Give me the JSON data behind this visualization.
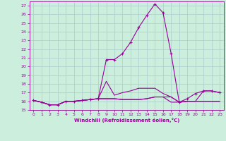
{
  "xlabel": "Windchill (Refroidissement éolien,°C)",
  "bg_color": "#cceedd",
  "line_color": "#990099",
  "grid_color": "#aacccc",
  "xlim": [
    -0.5,
    23.5
  ],
  "ylim": [
    15,
    27.5
  ],
  "yticks": [
    15,
    16,
    17,
    18,
    19,
    20,
    21,
    22,
    23,
    24,
    25,
    26,
    27
  ],
  "xticks": [
    0,
    1,
    2,
    3,
    4,
    5,
    6,
    7,
    8,
    9,
    10,
    11,
    12,
    13,
    14,
    15,
    16,
    17,
    18,
    19,
    20,
    21,
    22,
    23
  ],
  "series1_x": [
    0,
    1,
    2,
    3,
    4,
    5,
    6,
    7,
    8,
    9,
    10,
    11,
    12,
    13,
    14,
    15,
    16,
    17,
    18,
    19,
    20,
    21,
    22,
    23
  ],
  "series1_y": [
    16.1,
    15.9,
    15.6,
    15.6,
    16.0,
    16.0,
    16.1,
    16.2,
    16.3,
    20.8,
    20.8,
    21.5,
    22.8,
    24.5,
    25.9,
    27.2,
    26.2,
    21.5,
    15.9,
    16.3,
    16.9,
    17.2,
    17.2,
    17.0
  ],
  "series2_x": [
    0,
    1,
    2,
    3,
    4,
    5,
    6,
    7,
    8,
    9,
    10,
    11,
    12,
    13,
    14,
    15,
    16,
    17,
    18,
    19,
    20,
    21,
    22,
    23
  ],
  "series2_y": [
    16.1,
    15.9,
    15.6,
    15.6,
    16.0,
    16.0,
    16.1,
    16.2,
    16.3,
    18.3,
    16.7,
    17.0,
    17.2,
    17.5,
    17.5,
    17.5,
    16.9,
    16.5,
    15.9,
    16.0,
    16.0,
    16.0,
    16.0,
    16.0
  ],
  "series3_x": [
    0,
    1,
    2,
    3,
    4,
    5,
    6,
    7,
    8,
    9,
    10,
    11,
    12,
    13,
    14,
    15,
    16,
    17,
    18,
    19,
    20,
    21,
    22,
    23
  ],
  "series3_y": [
    16.1,
    15.9,
    15.6,
    15.6,
    16.0,
    16.0,
    16.1,
    16.2,
    16.3,
    16.3,
    16.3,
    16.2,
    16.2,
    16.2,
    16.3,
    16.5,
    16.5,
    16.5,
    15.9,
    16.0,
    16.0,
    17.2,
    17.2,
    17.0
  ],
  "series4_x": [
    0,
    1,
    2,
    3,
    4,
    5,
    6,
    7,
    8,
    9,
    10,
    11,
    12,
    13,
    14,
    15,
    16,
    17,
    18,
    19,
    20,
    21,
    22,
    23
  ],
  "series4_y": [
    16.1,
    15.9,
    15.6,
    15.6,
    16.0,
    16.0,
    16.1,
    16.2,
    16.3,
    16.3,
    16.3,
    16.2,
    16.2,
    16.2,
    16.3,
    16.5,
    16.5,
    15.9,
    15.9,
    16.0,
    16.0,
    16.0,
    16.0,
    16.0
  ]
}
